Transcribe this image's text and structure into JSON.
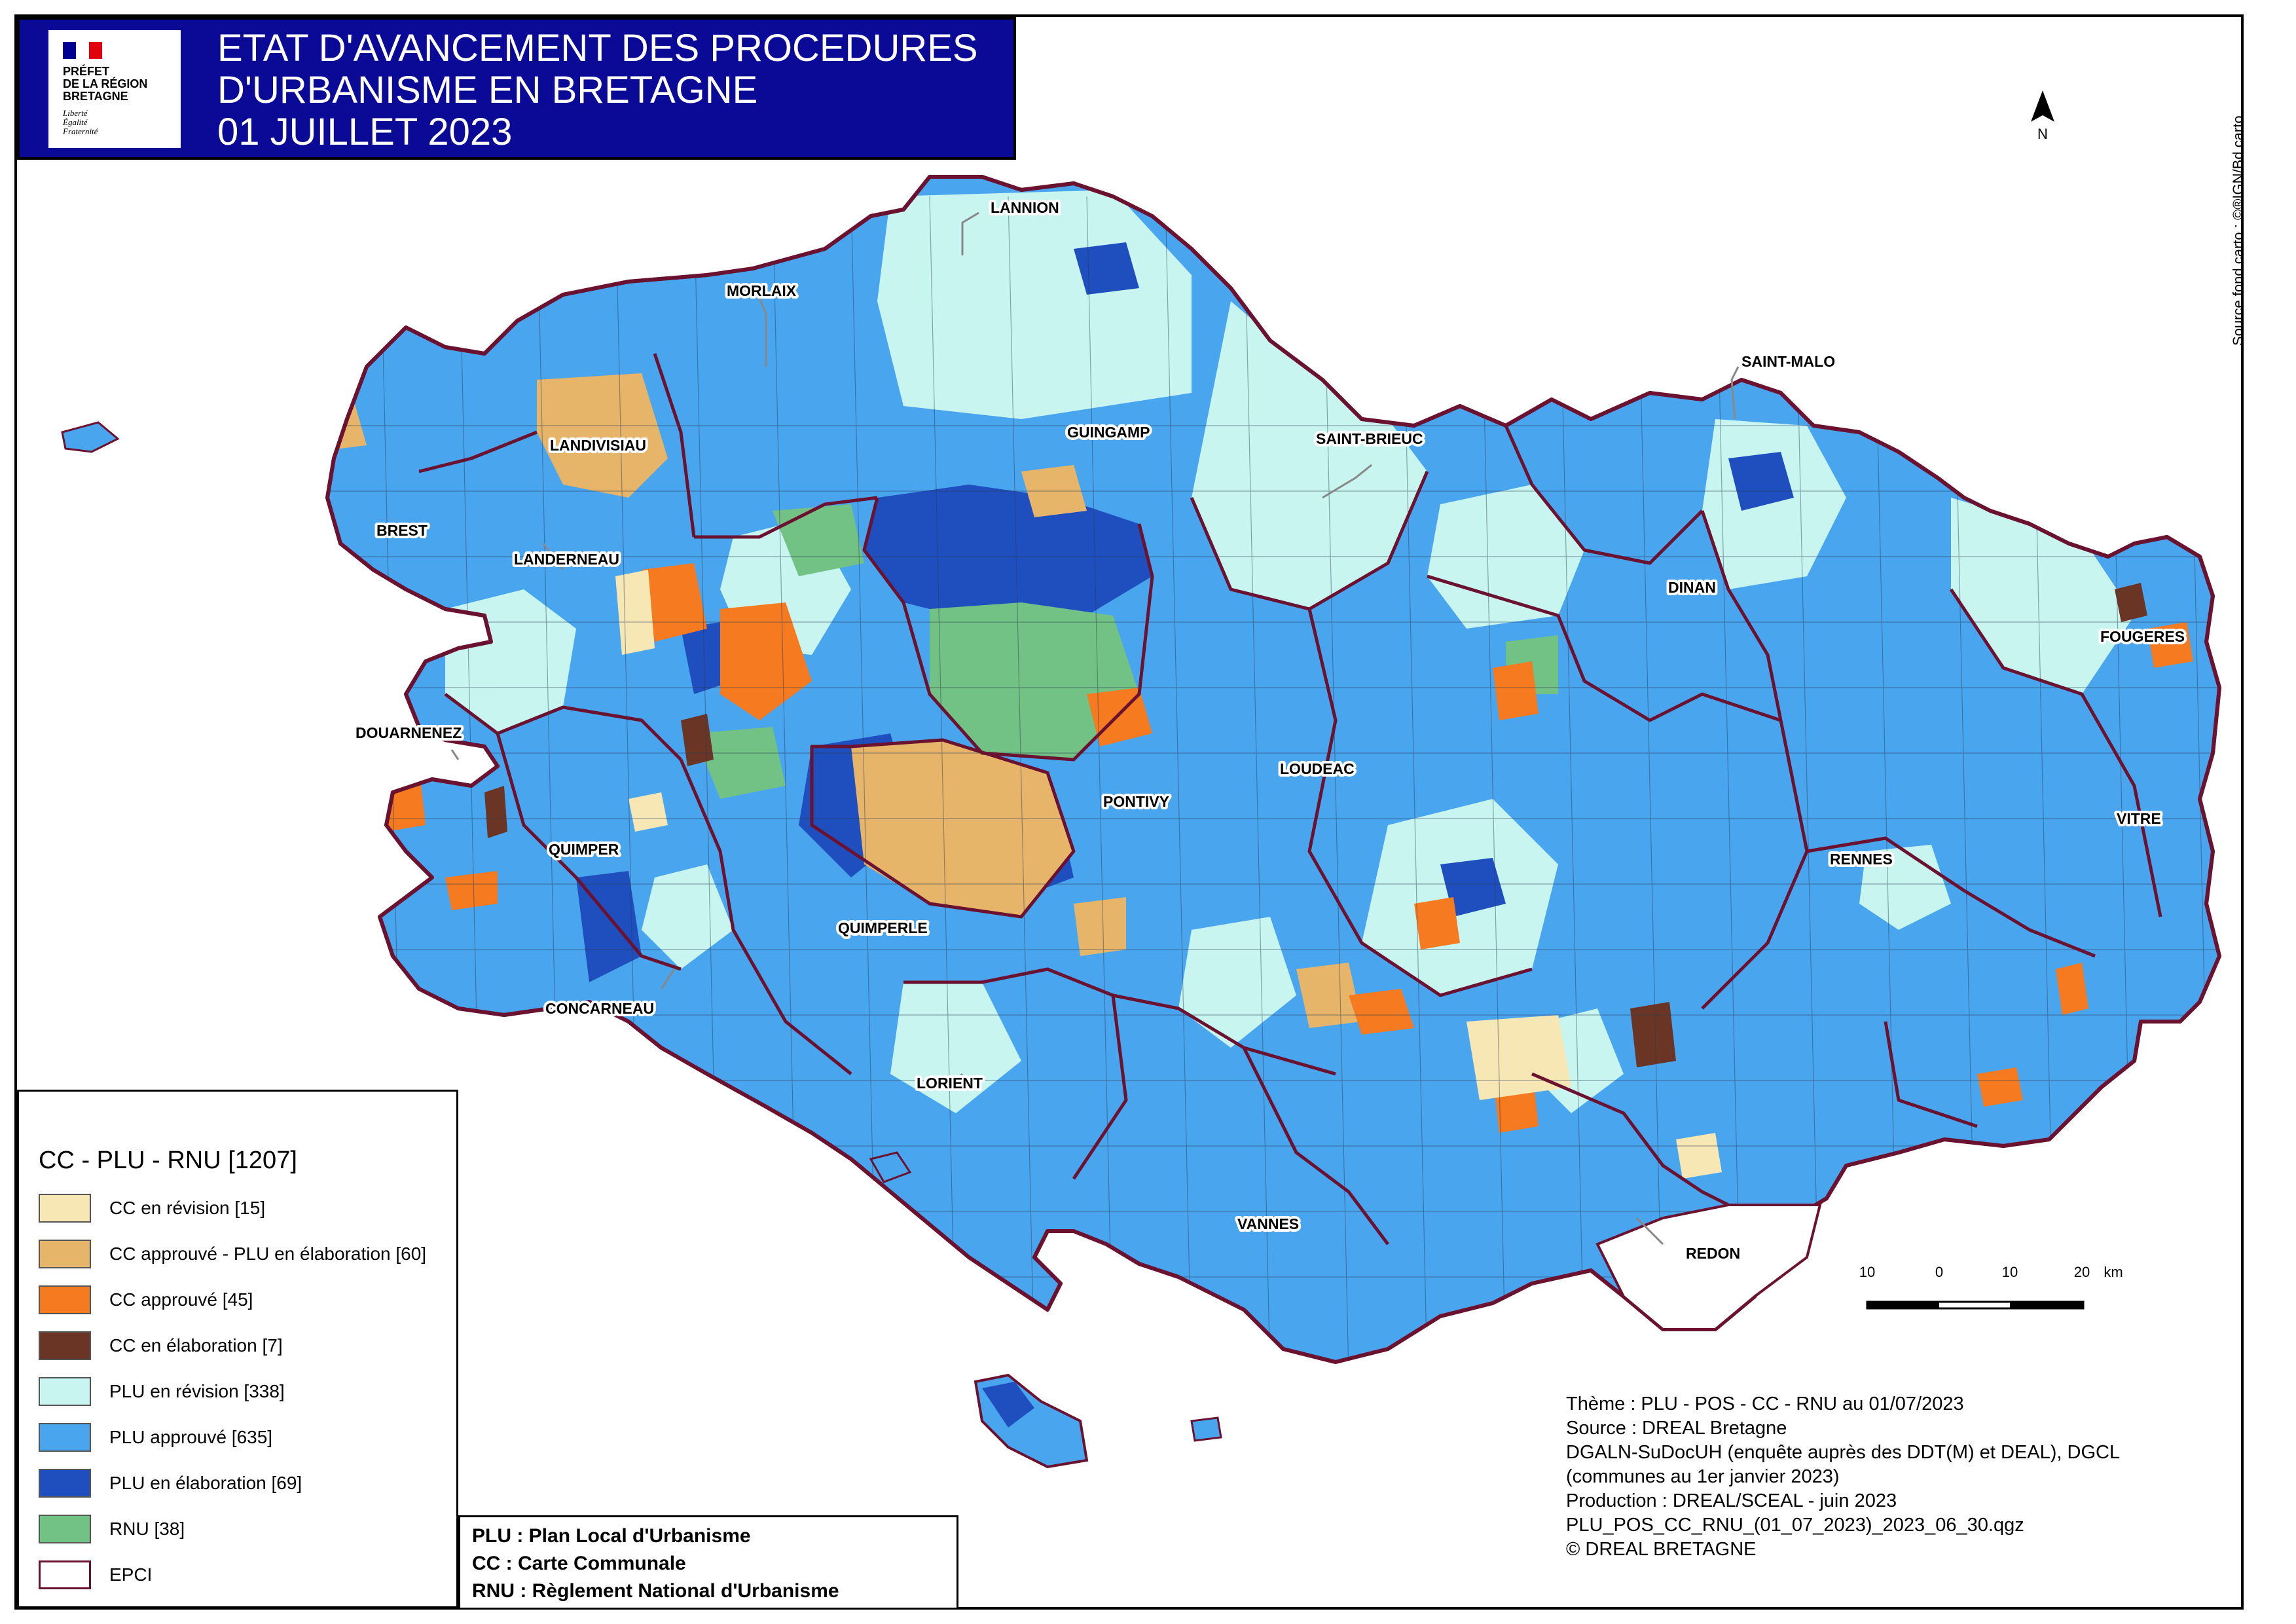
{
  "header": {
    "logo": {
      "line1": "PRÉFET",
      "line2": "DE LA RÉGION",
      "line3": "BRETAGNE",
      "motto1": "Liberté",
      "motto2": "Égalité",
      "motto3": "Fraternité"
    },
    "title_line1": "ETAT D'AVANCEMENT DES PROCEDURES",
    "title_line2": "D'URBANISME EN BRETAGNE",
    "title_line3": "01 JUILLET 2023"
  },
  "north_arrow": {
    "label": "N"
  },
  "source_fond": "Source fond carto : ©®IGN/Bd carto",
  "places": {
    "lannion": "LANNION",
    "morlaix": "MORLAIX",
    "saint_malo": "SAINT-MALO",
    "landivisiau": "LANDIVISIAU",
    "guingamp": "GUINGAMP",
    "saint_brieuc": "SAINT-BRIEUC",
    "brest": "BREST",
    "landerneau": "LANDERNEAU",
    "dinan": "DINAN",
    "fougeres": "FOUGERES",
    "douarnenez": "DOUARNENEZ",
    "loudeac": "LOUDEAC",
    "pontivy": "PONTIVY",
    "quimper": "QUIMPER",
    "vitre": "VITRE",
    "rennes": "RENNES",
    "quimperle": "QUIMPERLE",
    "concarneau": "CONCARNEAU",
    "lorient": "LORIENT",
    "vannes": "VANNES",
    "redon": "REDON"
  },
  "scale_bar": {
    "labels": [
      "10",
      "0",
      "10",
      "20"
    ],
    "unit": "km"
  },
  "legend": {
    "title": "CC - PLU - RNU [1207]",
    "items": [
      {
        "label": "CC en révision [15]",
        "color": "#f7e7b5"
      },
      {
        "label": "CC approuvé - PLU en élaboration [60]",
        "color": "#e6b56a"
      },
      {
        "label": "CC approuvé [45]",
        "color": "#f57a20"
      },
      {
        "label": "CC en élaboration [7]",
        "color": "#6b3526"
      },
      {
        "label": "PLU en révision [338]",
        "color": "#c9f5f0"
      },
      {
        "label": "PLU approuvé [635]",
        "color": "#4aa5ef"
      },
      {
        "label": "PLU en élaboration [69]",
        "color": "#1f4fbe"
      },
      {
        "label": "RNU [38]",
        "color": "#72c285"
      },
      {
        "label": "EPCI",
        "color": "#ffffff",
        "border": "#6b1230"
      }
    ]
  },
  "abbreviations": [
    "PLU : Plan Local d'Urbanisme",
    "CC : Carte Communale",
    "RNU : Règlement National d'Urbanisme"
  ],
  "credits": [
    "Thème : PLU - POS - CC - RNU au 01/07/2023",
    "Source : DREAL Bretagne",
    "DGALN-SuDocUH (enquête auprès des DDT(M) et DEAL), DGCL",
    "(communes au 1er janvier 2023)",
    "Production : DREAL/SCEAL - juin 2023",
    "PLU_POS_CC_RNU_(01_07_2023)_2023_06_30.qgz",
    "© DREAL BRETAGNE"
  ]
}
